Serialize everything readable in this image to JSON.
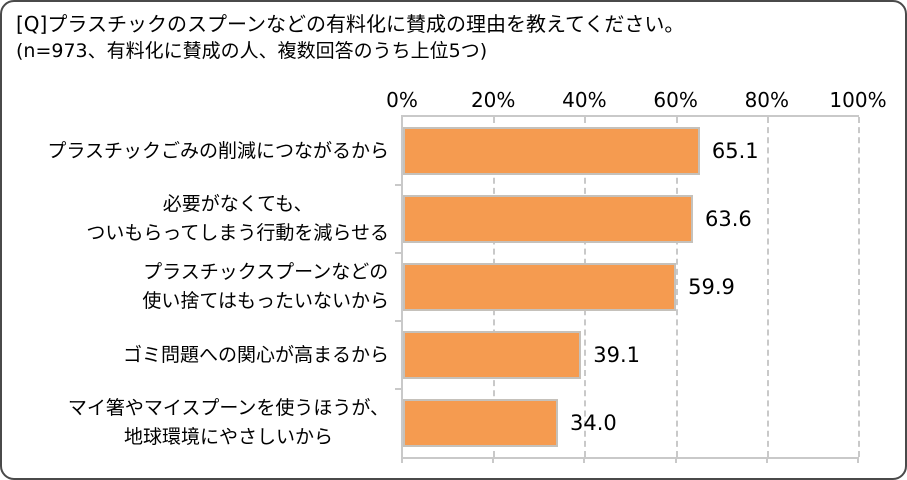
{
  "header": {
    "title": "[Q]プラスチックのスプーンなどの有料化に賛成の理由を教えてください。",
    "subtitle": "(n=973、有料化に賛成の人、複数回答のうち上位5つ)"
  },
  "chart_data": {
    "type": "bar",
    "orientation": "horizontal",
    "title": "[Q]プラスチックのスプーンなどの有料化に賛成の理由を教えてください。",
    "subtitle": "(n=973、有料化に賛成の人、複数回答のうち上位5つ)",
    "categories": [
      [
        "プラスチックごみの削減につながるから"
      ],
      [
        "必要がなくても、",
        "ついもらってしまう行動を減らせる"
      ],
      [
        "プラスチックスプーンなどの",
        "使い捨てはもったいないから"
      ],
      [
        "ゴミ問題への関心が高まるから"
      ],
      [
        "マイ箸やマイスプーンを使うほうが、",
        "地球環境にやさしいから"
      ]
    ],
    "values": [
      65.1,
      63.6,
      59.9,
      39.1,
      34.0
    ],
    "value_labels": [
      "65.1",
      "63.6",
      "59.9",
      "39.1",
      "34.0"
    ],
    "x_ticks": [
      "0%",
      "20%",
      "40%",
      "60%",
      "80%",
      "100%"
    ],
    "xlim": [
      0,
      100
    ],
    "grid": "dashed-vertical",
    "legend": "none",
    "colors": {
      "bar_fill": "#F59B50",
      "bar_border": "#C5C1BB",
      "axis": "#C9C9C9",
      "text": "#000000",
      "frame_border": "#4A4A4A"
    }
  }
}
